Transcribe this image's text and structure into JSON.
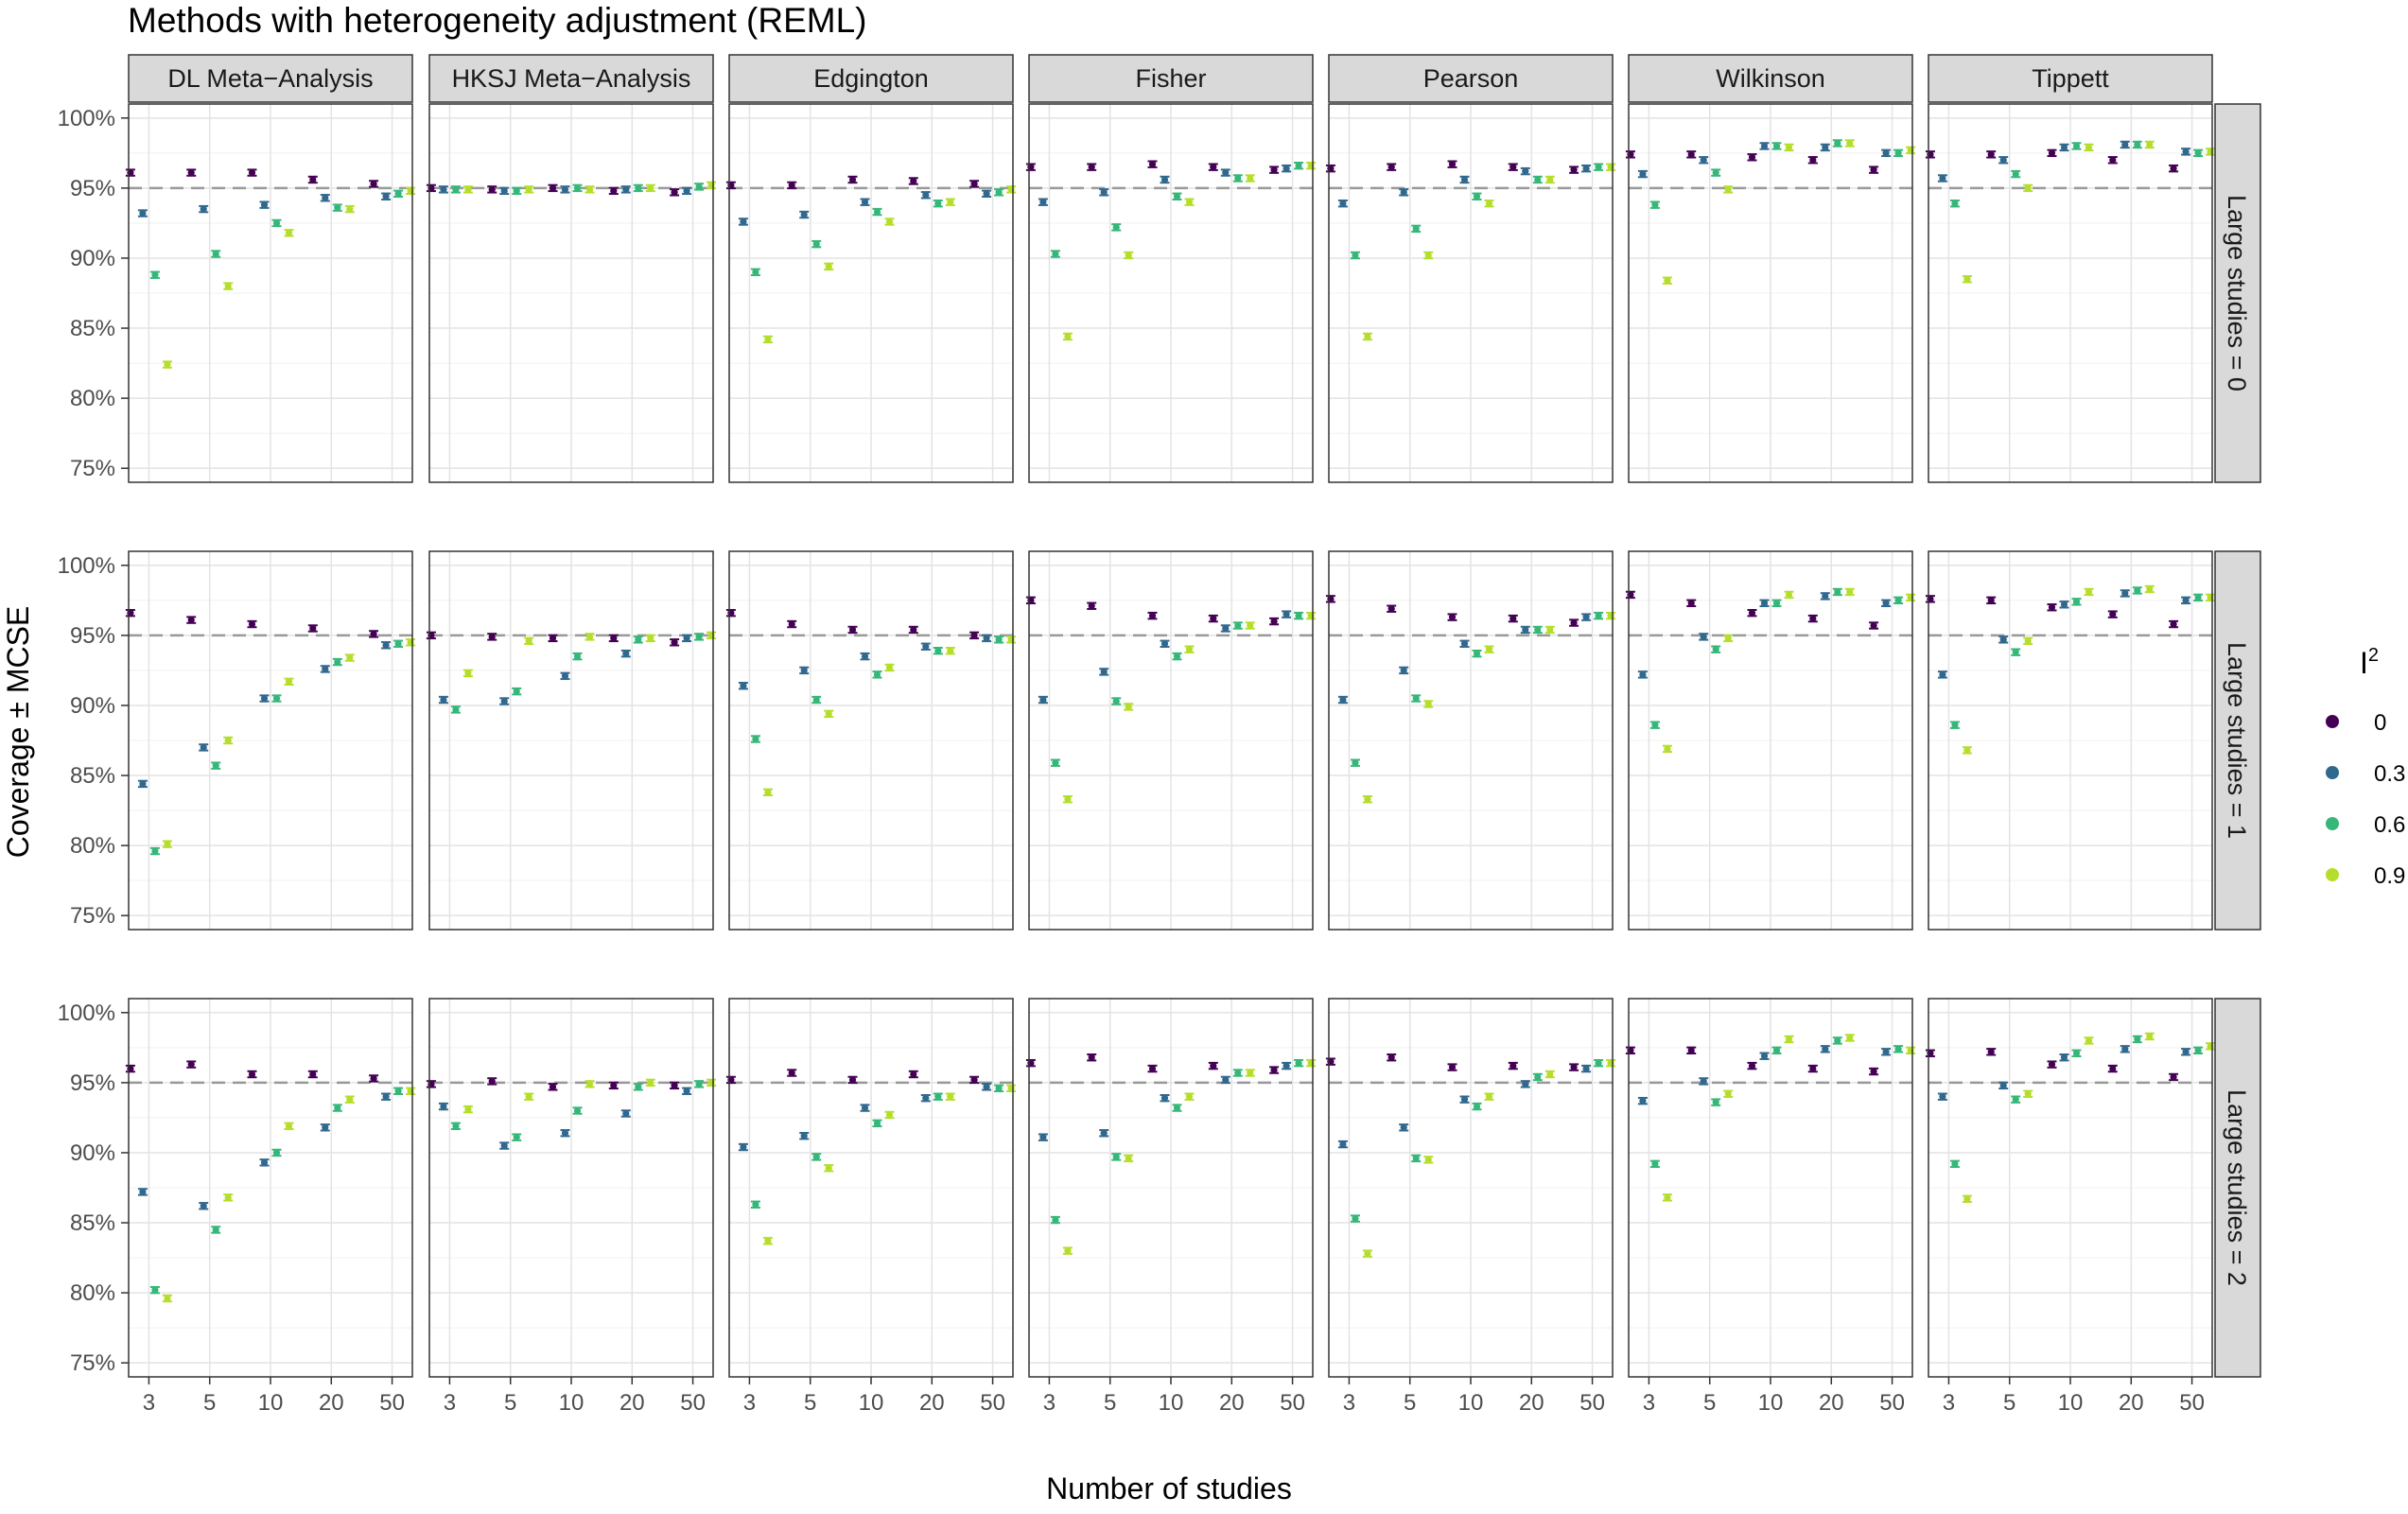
{
  "chart_data": {
    "type": "scatter",
    "title": "Methods with heterogeneity adjustment (REML)",
    "xlabel": "Number of studies",
    "ylabel": "Coverage ± MCSE",
    "x_categories": [
      "3",
      "5",
      "10",
      "20",
      "50"
    ],
    "y_ticks": [
      "75%",
      "80%",
      "85%",
      "90%",
      "95%",
      "100%"
    ],
    "ylim": [
      74,
      101
    ],
    "reference_line": 95,
    "grid": true,
    "methods": [
      "DL Meta−Analysis",
      "HKSJ Meta−Analysis",
      "Edgington",
      "Fisher",
      "Pearson",
      "Wilkinson",
      "Tippett"
    ],
    "rows": [
      "Large studies = 0",
      "Large studies = 1",
      "Large studies = 2"
    ],
    "legend": {
      "title": "I",
      "title_sup": "2",
      "position": "right",
      "items": [
        {
          "label": "0",
          "color": "#440154"
        },
        {
          "label": "0.3",
          "color": "#31688E"
        },
        {
          "label": "0.6",
          "color": "#35B779"
        },
        {
          "label": "0.9",
          "color": "#B5DE2B"
        }
      ]
    },
    "series_colors": [
      "#440154",
      "#31688E",
      "#35B779",
      "#B5DE2B"
    ],
    "coverage": [
      [
        [
          [
            96.1,
            93.2,
            88.8,
            82.4
          ],
          [
            96.1,
            93.5,
            90.3,
            88.0
          ],
          [
            96.1,
            93.8,
            92.5,
            91.8
          ],
          [
            95.6,
            94.3,
            93.6,
            93.5
          ],
          [
            95.3,
            94.4,
            94.6,
            94.8
          ]
        ],
        [
          [
            95.0,
            94.9,
            94.9,
            94.9
          ],
          [
            94.9,
            94.8,
            94.8,
            94.9
          ],
          [
            95.0,
            94.9,
            95.0,
            94.9
          ],
          [
            94.8,
            94.9,
            95.0,
            95.0
          ],
          [
            94.7,
            94.8,
            95.1,
            95.2
          ]
        ],
        [
          [
            95.2,
            92.6,
            89.0,
            84.2
          ],
          [
            95.2,
            93.1,
            91.0,
            89.4
          ],
          [
            95.6,
            94.0,
            93.3,
            92.6
          ],
          [
            95.5,
            94.5,
            93.9,
            94.0
          ],
          [
            95.3,
            94.6,
            94.7,
            94.9
          ]
        ],
        [
          [
            96.5,
            94.0,
            90.3,
            84.4
          ],
          [
            96.5,
            94.7,
            92.2,
            90.2
          ],
          [
            96.7,
            95.6,
            94.4,
            94.0
          ],
          [
            96.5,
            96.1,
            95.7,
            95.7
          ],
          [
            96.3,
            96.4,
            96.6,
            96.6
          ]
        ],
        [
          [
            96.4,
            93.9,
            90.2,
            84.4
          ],
          [
            96.5,
            94.7,
            92.1,
            90.2
          ],
          [
            96.7,
            95.6,
            94.4,
            93.9
          ],
          [
            96.5,
            96.2,
            95.6,
            95.6
          ],
          [
            96.3,
            96.4,
            96.5,
            96.5
          ]
        ],
        [
          [
            97.4,
            96.0,
            93.8,
            88.4
          ],
          [
            97.4,
            97.0,
            96.1,
            94.9
          ],
          [
            97.2,
            98.0,
            98.0,
            97.9
          ],
          [
            97.0,
            97.9,
            98.2,
            98.2
          ],
          [
            96.3,
            97.5,
            97.5,
            97.7
          ]
        ],
        [
          [
            97.4,
            95.7,
            93.9,
            88.5
          ],
          [
            97.4,
            97.0,
            96.0,
            95.0
          ],
          [
            97.5,
            97.9,
            98.0,
            97.9
          ],
          [
            97.0,
            98.1,
            98.1,
            98.1
          ],
          [
            96.4,
            97.6,
            97.5,
            97.6
          ]
        ]
      ],
      [
        [
          [
            96.6,
            84.4,
            79.6,
            80.1
          ],
          [
            96.1,
            87.0,
            85.7,
            87.5
          ],
          [
            95.8,
            90.5,
            90.5,
            91.7
          ],
          [
            95.5,
            92.6,
            93.1,
            93.4
          ],
          [
            95.1,
            94.3,
            94.4,
            94.5
          ]
        ],
        [
          [
            95.0,
            90.4,
            89.7,
            92.3
          ],
          [
            94.9,
            90.3,
            91.0,
            94.6
          ],
          [
            94.8,
            92.1,
            93.5,
            94.9
          ],
          [
            94.8,
            93.7,
            94.7,
            94.8
          ],
          [
            94.5,
            94.8,
            94.9,
            95.0
          ]
        ],
        [
          [
            96.6,
            91.4,
            87.6,
            83.8
          ],
          [
            95.8,
            92.5,
            90.4,
            89.4
          ],
          [
            95.4,
            93.5,
            92.2,
            92.7
          ],
          [
            95.4,
            94.2,
            93.9,
            93.9
          ],
          [
            95.0,
            94.8,
            94.7,
            94.7
          ]
        ],
        [
          [
            97.5,
            90.4,
            85.9,
            83.3
          ],
          [
            97.1,
            92.4,
            90.3,
            89.9
          ],
          [
            96.4,
            94.4,
            93.5,
            94.0
          ],
          [
            96.2,
            95.5,
            95.7,
            95.7
          ],
          [
            96.0,
            96.5,
            96.4,
            96.4
          ]
        ],
        [
          [
            97.6,
            90.4,
            85.9,
            83.3
          ],
          [
            96.9,
            92.5,
            90.5,
            90.1
          ],
          [
            96.3,
            94.4,
            93.7,
            94.0
          ],
          [
            96.2,
            95.4,
            95.4,
            95.4
          ],
          [
            95.9,
            96.3,
            96.4,
            96.4
          ]
        ],
        [
          [
            97.9,
            92.2,
            88.6,
            86.9
          ],
          [
            97.3,
            94.9,
            94.0,
            94.8
          ],
          [
            96.6,
            97.3,
            97.3,
            97.9
          ],
          [
            96.2,
            97.8,
            98.1,
            98.1
          ],
          [
            95.7,
            97.3,
            97.5,
            97.7
          ]
        ],
        [
          [
            97.6,
            92.2,
            88.6,
            86.8
          ],
          [
            97.5,
            94.7,
            93.8,
            94.6
          ],
          [
            97.0,
            97.2,
            97.4,
            98.1
          ],
          [
            96.5,
            98.0,
            98.2,
            98.3
          ],
          [
            95.8,
            97.5,
            97.7,
            97.7
          ]
        ]
      ],
      [
        [
          [
            96.0,
            87.2,
            80.2,
            79.6
          ],
          [
            96.3,
            86.2,
            84.5,
            86.8
          ],
          [
            95.6,
            89.3,
            90.0,
            91.9
          ],
          [
            95.6,
            91.8,
            93.2,
            93.8
          ],
          [
            95.3,
            94.0,
            94.4,
            94.4
          ]
        ],
        [
          [
            94.9,
            93.3,
            91.9,
            93.1
          ],
          [
            95.1,
            90.5,
            91.1,
            94.0
          ],
          [
            94.7,
            91.4,
            93.0,
            94.9
          ],
          [
            94.8,
            92.8,
            94.7,
            95.0
          ],
          [
            94.8,
            94.4,
            94.9,
            95.0
          ]
        ],
        [
          [
            95.2,
            90.4,
            86.3,
            83.7
          ],
          [
            95.7,
            91.2,
            89.7,
            88.9
          ],
          [
            95.2,
            93.2,
            92.1,
            92.7
          ],
          [
            95.6,
            93.9,
            94.0,
            94.0
          ],
          [
            95.2,
            94.7,
            94.6,
            94.6
          ]
        ],
        [
          [
            96.4,
            91.1,
            85.2,
            83.0
          ],
          [
            96.8,
            91.4,
            89.7,
            89.6
          ],
          [
            96.0,
            93.9,
            93.2,
            94.0
          ],
          [
            96.2,
            95.2,
            95.7,
            95.7
          ],
          [
            95.9,
            96.2,
            96.4,
            96.4
          ]
        ],
        [
          [
            96.5,
            90.6,
            85.3,
            82.8
          ],
          [
            96.8,
            91.8,
            89.6,
            89.5
          ],
          [
            96.1,
            93.8,
            93.3,
            94.0
          ],
          [
            96.2,
            94.9,
            95.4,
            95.6
          ],
          [
            96.1,
            96.0,
            96.4,
            96.4
          ]
        ],
        [
          [
            97.3,
            93.7,
            89.2,
            86.8
          ],
          [
            97.3,
            95.1,
            93.6,
            94.2
          ],
          [
            96.2,
            96.9,
            97.3,
            98.1
          ],
          [
            96.0,
            97.4,
            98.0,
            98.2
          ],
          [
            95.8,
            97.2,
            97.4,
            97.3
          ]
        ],
        [
          [
            97.1,
            94.0,
            89.2,
            86.7
          ],
          [
            97.2,
            94.8,
            93.8,
            94.2
          ],
          [
            96.3,
            96.8,
            97.1,
            98.0
          ],
          [
            96.0,
            97.4,
            98.1,
            98.3
          ],
          [
            95.4,
            97.2,
            97.3,
            97.6
          ]
        ]
      ]
    ]
  }
}
